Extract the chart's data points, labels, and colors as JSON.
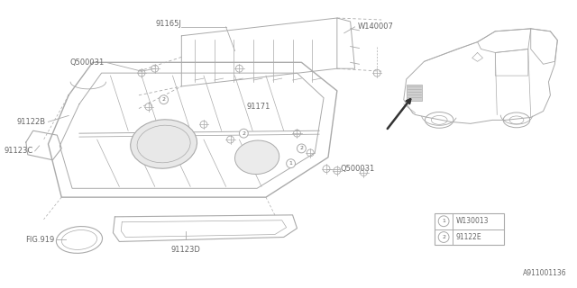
{
  "bg_color": "#ffffff",
  "line_color": "#aaaaaa",
  "line_color_dark": "#888888",
  "text_color": "#666666",
  "ref_code": "A911001136",
  "legend_items": [
    {
      "num": "1",
      "code": "W130013"
    },
    {
      "num": "2",
      "code": "91122E"
    }
  ]
}
